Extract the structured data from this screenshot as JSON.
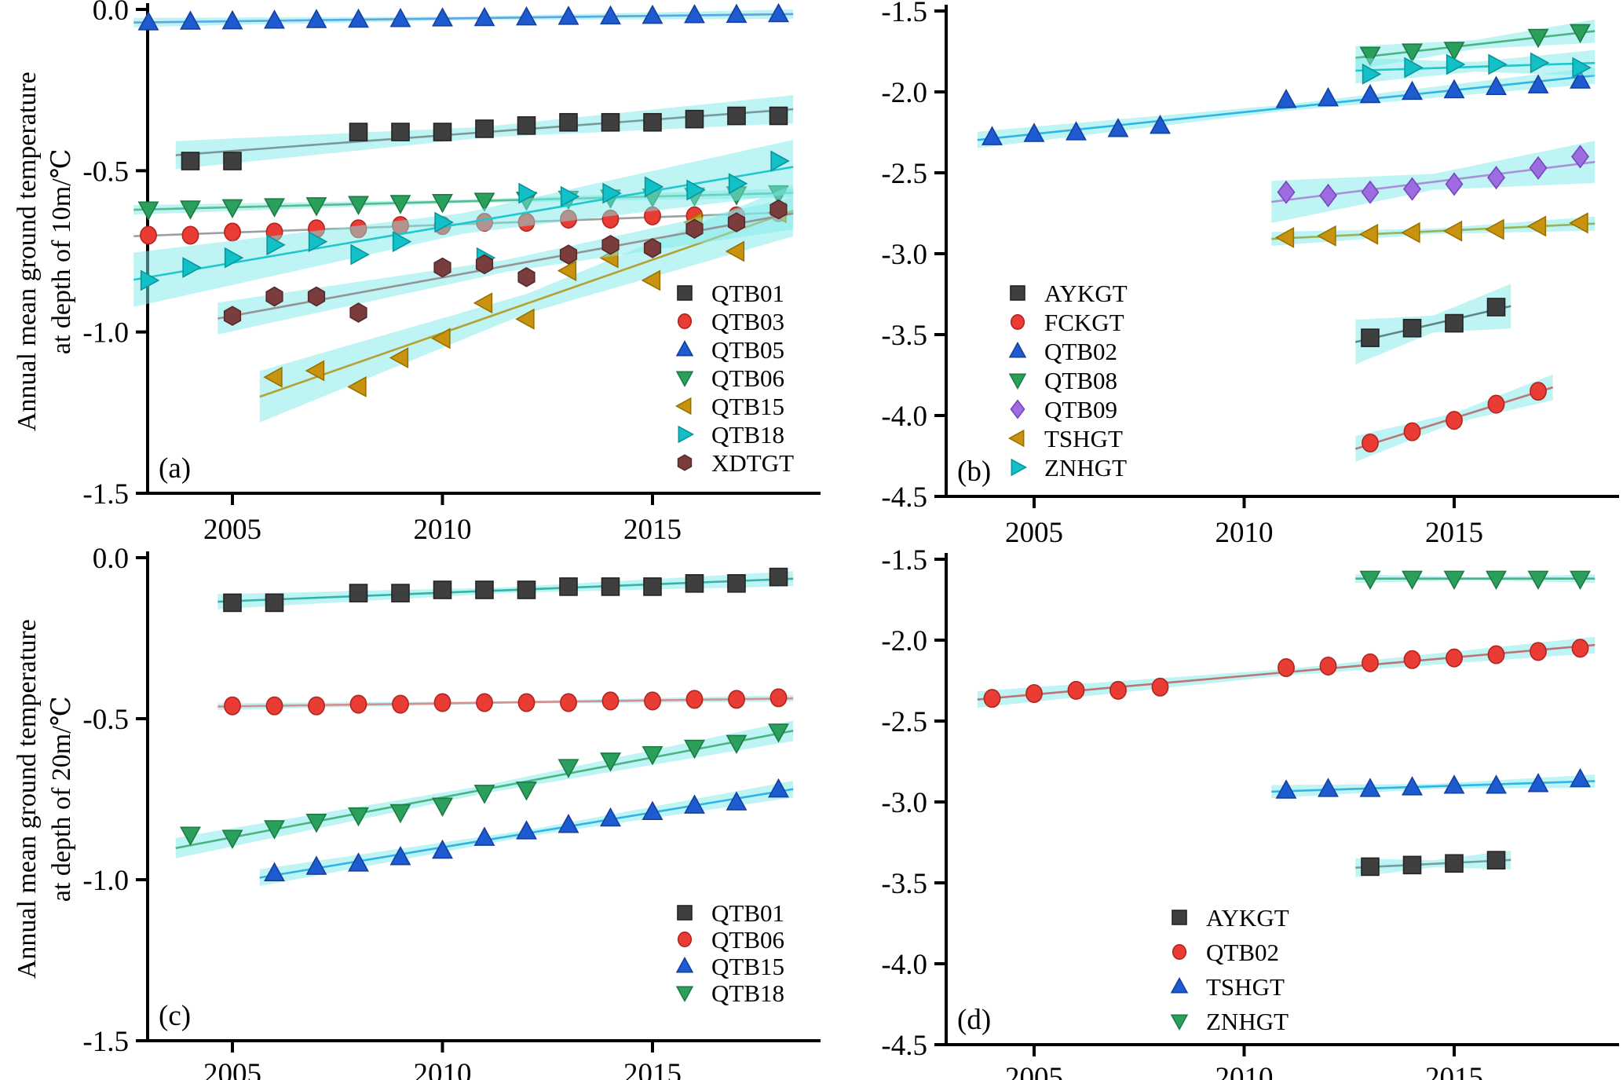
{
  "figure": {
    "background": "#ffffff",
    "band_color": "#7fe9e9",
    "axis_color": "#000000"
  },
  "chart_data": [
    {
      "id": "a",
      "type": "scatter",
      "label": "(a)",
      "ylabel_line1": "Annual mean ground temperature",
      "ylabel_line2": "at depth of 10m/℃",
      "ylim": [
        -1.5,
        0.0
      ],
      "yticks": [
        0.0,
        -0.5,
        -1.0,
        -1.5
      ],
      "ytick_labels": [
        "0.0",
        "-0.5",
        "-1.0",
        "-1.5"
      ],
      "xticks": [
        2005,
        2010,
        2015
      ],
      "xtick_labels": [
        "2005",
        "2010",
        "2015"
      ],
      "grid": false,
      "legend_position": "inside-right",
      "series": [
        {
          "name": "QTB01",
          "marker": "square",
          "color": "#3f3f3f",
          "edge": "#242424",
          "line_color": "#7a9a9a",
          "band": 0.03,
          "x": [
            2004,
            2005,
            2008,
            2009,
            2010,
            2011,
            2012,
            2013,
            2014,
            2015,
            2016,
            2017,
            2018
          ],
          "y": [
            -0.47,
            -0.47,
            -0.38,
            -0.38,
            -0.38,
            -0.37,
            -0.36,
            -0.35,
            -0.35,
            -0.35,
            -0.34,
            -0.33,
            -0.33
          ]
        },
        {
          "name": "QTB03",
          "marker": "circle",
          "color": "#e83c34",
          "edge": "#b2251f",
          "line_color": "#9aa0a0",
          "band": 0,
          "x": [
            2003,
            2004,
            2005,
            2006,
            2007,
            2008,
            2009,
            2010,
            2011,
            2012,
            2013,
            2014,
            2015,
            2016,
            2017,
            2018
          ],
          "y": [
            -0.7,
            -0.7,
            -0.69,
            -0.69,
            -0.68,
            -0.68,
            -0.67,
            -0.67,
            -0.66,
            -0.66,
            -0.65,
            -0.65,
            -0.64,
            -0.64,
            -0.64,
            -0.63
          ]
        },
        {
          "name": "QTB05",
          "marker": "triangle-up",
          "color": "#1e5ad0",
          "edge": "#15409e",
          "line_color": "#5aa6e8",
          "band": 0.01,
          "x": [
            2003,
            2004,
            2005,
            2006,
            2007,
            2008,
            2009,
            2010,
            2011,
            2012,
            2013,
            2014,
            2015,
            2016,
            2017,
            2018
          ],
          "y": [
            -0.04,
            -0.038,
            -0.037,
            -0.035,
            -0.033,
            -0.032,
            -0.03,
            -0.028,
            -0.027,
            -0.025,
            -0.023,
            -0.022,
            -0.02,
            -0.018,
            -0.017,
            -0.015
          ]
        },
        {
          "name": "QTB06",
          "marker": "triangle-down",
          "color": "#2aa05c",
          "edge": "#1d7a44",
          "line_color": "#57bd8d",
          "band": 0.01,
          "x": [
            2003,
            2004,
            2005,
            2006,
            2007,
            2008,
            2009,
            2010,
            2011,
            2012,
            2013,
            2014,
            2015,
            2016,
            2017,
            2018
          ],
          "y": [
            -0.62,
            -0.617,
            -0.613,
            -0.61,
            -0.607,
            -0.603,
            -0.6,
            -0.597,
            -0.593,
            -0.59,
            -0.587,
            -0.583,
            -0.58,
            -0.577,
            -0.573,
            -0.57
          ]
        },
        {
          "name": "QTB15",
          "marker": "triangle-left",
          "color": "#c89410",
          "edge": "#9a7100",
          "line_color": "#b3a233",
          "band": 0.055,
          "x": [
            2006,
            2007,
            2008,
            2009,
            2010,
            2011,
            2012,
            2013,
            2014,
            2015,
            2016,
            2017,
            2018
          ],
          "y": [
            -1.14,
            -1.12,
            -1.17,
            -1.08,
            -1.02,
            -0.91,
            -0.96,
            -0.81,
            -0.77,
            -0.84,
            -0.66,
            -0.75,
            -0.63
          ]
        },
        {
          "name": "QTB18",
          "marker": "triangle-right",
          "color": "#12c0c8",
          "edge": "#0b959c",
          "line_color": "#1fc8cf",
          "band": 0.058,
          "x": [
            2003,
            2004,
            2005,
            2006,
            2007,
            2008,
            2009,
            2010,
            2011,
            2012,
            2013,
            2014,
            2015,
            2016,
            2017,
            2018
          ],
          "y": [
            -0.84,
            -0.8,
            -0.77,
            -0.73,
            -0.72,
            -0.76,
            -0.72,
            -0.66,
            -0.77,
            -0.57,
            -0.58,
            -0.57,
            -0.55,
            -0.56,
            -0.54,
            -0.47
          ]
        },
        {
          "name": "XDTGT",
          "marker": "hexagon",
          "color": "#7a3c3c",
          "edge": "#572929",
          "line_color": "#949494",
          "band": 0.034,
          "x": [
            2005,
            2006,
            2007,
            2008,
            2010,
            2011,
            2012,
            2013,
            2014,
            2015,
            2016,
            2017,
            2018
          ],
          "y": [
            -0.95,
            -0.89,
            -0.89,
            -0.94,
            -0.8,
            -0.79,
            -0.83,
            -0.76,
            -0.73,
            -0.74,
            -0.68,
            -0.66,
            -0.62
          ]
        }
      ]
    },
    {
      "id": "b",
      "type": "scatter",
      "label": "(b)",
      "ylabel_line1": "",
      "ylabel_line2": "",
      "ylim": [
        -4.5,
        -1.5
      ],
      "yticks": [
        -1.5,
        -2.0,
        -2.5,
        -3.0,
        -3.5,
        -4.0,
        -4.5
      ],
      "ytick_labels": [
        "-1.5",
        "-2.0",
        "-2.5",
        "-3.0",
        "-3.5",
        "-4.0",
        "-4.5"
      ],
      "xticks": [
        2005,
        2010,
        2015
      ],
      "xtick_labels": [
        "2005",
        "2010",
        "2015"
      ],
      "grid": false,
      "legend_position": "inside-left-bottom",
      "series": [
        {
          "name": "AYKGT",
          "marker": "square",
          "color": "#3f3f3f",
          "edge": "#242424",
          "line_color": "#5f8484",
          "band": 0.095,
          "x": [
            2013,
            2014,
            2015,
            2016
          ],
          "y": [
            -3.52,
            -3.46,
            -3.43,
            -3.33
          ]
        },
        {
          "name": "FCKGT",
          "marker": "circle",
          "color": "#e83c34",
          "edge": "#b2251f",
          "line_color": "#bb7777",
          "band": 0.055,
          "x": [
            2013,
            2014,
            2015,
            2016,
            2017
          ],
          "y": [
            -4.17,
            -4.1,
            -4.03,
            -3.93,
            -3.85
          ]
        },
        {
          "name": "QTB02",
          "marker": "triangle-up",
          "color": "#1e5ad0",
          "edge": "#15409e",
          "line_color": "#30b4e8",
          "band": 0.035,
          "x": [
            2004,
            2005,
            2006,
            2007,
            2008,
            2011,
            2012,
            2013,
            2014,
            2015,
            2016,
            2017,
            2018
          ],
          "y": [
            -2.28,
            -2.26,
            -2.25,
            -2.23,
            -2.21,
            -2.05,
            -2.04,
            -2.02,
            -2.0,
            -1.99,
            -1.97,
            -1.96,
            -1.93
          ]
        },
        {
          "name": "QTB08",
          "marker": "triangle-down",
          "color": "#2aa05c",
          "edge": "#1d7a44",
          "line_color": "#49b582",
          "band": 0.05,
          "x": [
            2013,
            2014,
            2015,
            2017,
            2018
          ],
          "y": [
            -1.77,
            -1.75,
            -1.74,
            -1.66,
            -1.63
          ]
        },
        {
          "name": "QTB09",
          "marker": "diamond",
          "color": "#9d6ce0",
          "edge": "#7747bd",
          "line_color": "#a98fd9",
          "band": 0.09,
          "x": [
            2011,
            2012,
            2013,
            2014,
            2015,
            2016,
            2017,
            2018
          ],
          "y": [
            -2.62,
            -2.64,
            -2.62,
            -2.6,
            -2.57,
            -2.53,
            -2.47,
            -2.4
          ]
        },
        {
          "name": "TSHGT",
          "marker": "triangle-left",
          "color": "#c89410",
          "edge": "#9a7100",
          "line_color": "#97b45a",
          "band": 0.03,
          "x": [
            2011,
            2012,
            2013,
            2014,
            2015,
            2016,
            2017,
            2018
          ],
          "y": [
            -2.9,
            -2.89,
            -2.88,
            -2.87,
            -2.86,
            -2.85,
            -2.83,
            -2.81
          ]
        },
        {
          "name": "ZNHGT",
          "marker": "triangle-right",
          "color": "#12c0c8",
          "edge": "#0b959c",
          "line_color": "#1fc8cf",
          "band": 0.055,
          "x": [
            2013,
            2014,
            2015,
            2016,
            2017,
            2018
          ],
          "y": [
            -1.89,
            -1.85,
            -1.83,
            -1.83,
            -1.82,
            -1.85
          ]
        }
      ]
    },
    {
      "id": "c",
      "type": "scatter",
      "label": "(c)",
      "ylabel_line1": "Annual mean ground temperature",
      "ylabel_line2": "at depth of 20m/℃",
      "ylim": [
        -1.5,
        0.0
      ],
      "yticks": [
        0.0,
        -0.5,
        -1.0,
        -1.5
      ],
      "ytick_labels": [
        "0.0",
        "-0.5",
        "-1.0",
        "-1.5"
      ],
      "xticks": [
        2005,
        2010,
        2015
      ],
      "xtick_labels": [
        "2005",
        "2010",
        "2015"
      ],
      "grid": false,
      "legend_position": "inside-right",
      "series": [
        {
          "name": "QTB01",
          "marker": "square",
          "color": "#3f3f3f",
          "edge": "#242424",
          "line_color": "#35b3a8",
          "band": 0.016,
          "x": [
            2005,
            2006,
            2008,
            2009,
            2010,
            2011,
            2012,
            2013,
            2014,
            2015,
            2016,
            2017,
            2018
          ],
          "y": [
            -0.14,
            -0.14,
            -0.11,
            -0.11,
            -0.1,
            -0.1,
            -0.1,
            -0.09,
            -0.09,
            -0.09,
            -0.08,
            -0.08,
            -0.06
          ]
        },
        {
          "name": "QTB06",
          "marker": "circle",
          "color": "#e83c34",
          "edge": "#b2251f",
          "line_color": "#d98f8f",
          "band": 0.007,
          "x": [
            2005,
            2006,
            2007,
            2008,
            2009,
            2010,
            2011,
            2012,
            2013,
            2014,
            2015,
            2016,
            2017,
            2018
          ],
          "y": [
            -0.46,
            -0.46,
            -0.46,
            -0.455,
            -0.455,
            -0.45,
            -0.45,
            -0.45,
            -0.45,
            -0.445,
            -0.445,
            -0.44,
            -0.44,
            -0.435
          ]
        },
        {
          "name": "QTB15",
          "marker": "triangle-up",
          "color": "#1e5ad0",
          "edge": "#15409e",
          "line_color": "#30b4e8",
          "band": 0.018,
          "x": [
            2006,
            2007,
            2008,
            2009,
            2010,
            2011,
            2012,
            2013,
            2014,
            2015,
            2016,
            2017,
            2018
          ],
          "y": [
            -0.98,
            -0.96,
            -0.95,
            -0.93,
            -0.91,
            -0.87,
            -0.85,
            -0.83,
            -0.81,
            -0.79,
            -0.77,
            -0.76,
            -0.72
          ]
        },
        {
          "name": "QTB18",
          "marker": "triangle-down",
          "color": "#2aa05c",
          "edge": "#1d7a44",
          "line_color": "#49b582",
          "band": 0.022,
          "x": [
            2004,
            2005,
            2006,
            2007,
            2008,
            2009,
            2010,
            2011,
            2012,
            2013,
            2014,
            2015,
            2016,
            2017,
            2018
          ],
          "y": [
            -0.86,
            -0.87,
            -0.84,
            -0.82,
            -0.8,
            -0.79,
            -0.77,
            -0.73,
            -0.72,
            -0.65,
            -0.63,
            -0.61,
            -0.59,
            -0.575,
            -0.54
          ]
        }
      ]
    },
    {
      "id": "d",
      "type": "scatter",
      "label": "(d)",
      "ylabel_line1": "",
      "ylabel_line2": "",
      "ylim": [
        -4.5,
        -1.5
      ],
      "yticks": [
        -1.5,
        -2.0,
        -2.5,
        -3.0,
        -3.5,
        -4.0,
        -4.5
      ],
      "ytick_labels": [
        "-1.5",
        "-2.0",
        "-2.5",
        "-3.0",
        "-3.5",
        "-4.0",
        "-4.5"
      ],
      "xticks": [
        2005,
        2010,
        2015
      ],
      "xtick_labels": [
        "2005",
        "2010",
        "2015"
      ],
      "grid": false,
      "legend_position": "inside-left-bottom",
      "series": [
        {
          "name": "AYKGT",
          "marker": "square",
          "color": "#3f3f3f",
          "edge": "#242424",
          "line_color": "#6f9f9f",
          "band": 0.04,
          "x": [
            2013,
            2014,
            2015,
            2016
          ],
          "y": [
            -3.4,
            -3.39,
            -3.38,
            -3.36
          ]
        },
        {
          "name": "QTB02",
          "marker": "circle",
          "color": "#e83c34",
          "edge": "#b2251f",
          "line_color": "#bb7777",
          "band": 0.035,
          "x": [
            2004,
            2005,
            2006,
            2007,
            2008,
            2011,
            2012,
            2013,
            2014,
            2015,
            2016,
            2017,
            2018
          ],
          "y": [
            -2.36,
            -2.33,
            -2.31,
            -2.31,
            -2.29,
            -2.17,
            -2.16,
            -2.14,
            -2.12,
            -2.11,
            -2.09,
            -2.07,
            -2.05
          ]
        },
        {
          "name": "TSHGT",
          "marker": "triangle-up",
          "color": "#1e5ad0",
          "edge": "#15409e",
          "line_color": "#30b4e8",
          "band": 0.028,
          "x": [
            2011,
            2012,
            2013,
            2014,
            2015,
            2016,
            2017,
            2018
          ],
          "y": [
            -2.93,
            -2.92,
            -2.92,
            -2.91,
            -2.9,
            -2.9,
            -2.89,
            -2.86
          ]
        },
        {
          "name": "ZNHGT",
          "marker": "triangle-down",
          "color": "#2aa05c",
          "edge": "#1d7a44",
          "line_color": "#49b582",
          "band": 0.018,
          "x": [
            2013,
            2014,
            2015,
            2016,
            2017,
            2018
          ],
          "y": [
            -1.62,
            -1.62,
            -1.62,
            -1.62,
            -1.62,
            -1.62
          ]
        }
      ]
    }
  ]
}
